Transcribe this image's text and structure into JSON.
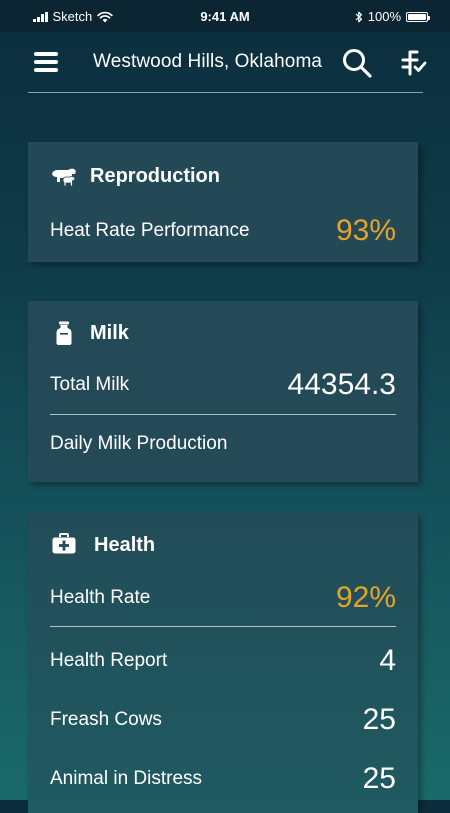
{
  "status_bar": {
    "carrier": "Sketch",
    "time": "9:41 AM",
    "battery": "100%"
  },
  "header": {
    "title": "Westwood Hills, Oklahoma",
    "menu_icon": "hamburger-menu-icon",
    "search_icon": "search-icon",
    "filter_icon": "filter-sort-icon"
  },
  "cards": {
    "reproduction": {
      "title": "Reproduction",
      "icon": "cow-calf-icon",
      "rows": [
        {
          "label": "Heat Rate Performance",
          "value": "93%"
        }
      ]
    },
    "milk": {
      "title": "Milk",
      "icon": "milk-can-icon",
      "rows": [
        {
          "label": "Total Milk",
          "value": "44354.3"
        },
        {
          "label": "Daily Milk Production",
          "value": ""
        }
      ]
    },
    "health": {
      "title": "Health",
      "icon": "medical-kit-icon",
      "rows": [
        {
          "label": "Health Rate",
          "value": "92%"
        },
        {
          "label": "Health Report",
          "value": "4"
        },
        {
          "label": "Freash Cows",
          "value": "25"
        },
        {
          "label": "Animal in Distress",
          "value": "25"
        }
      ]
    }
  },
  "colors": {
    "accent": "#e6a22c",
    "card_bg": "#244b5a",
    "background_top": "#0b2d3c",
    "background_bottom": "#1a6a6a"
  }
}
